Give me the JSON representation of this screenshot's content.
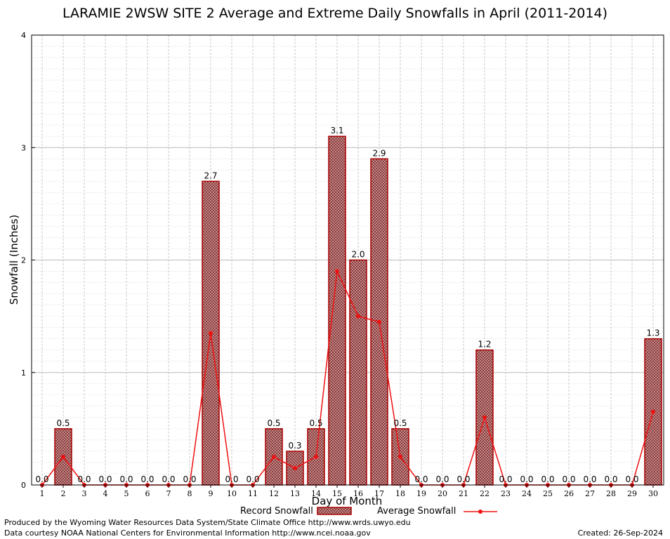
{
  "chart_data": {
    "type": "bar",
    "title": "LARAMIE 2WSW SITE 2 Average and Extreme Daily Snowfalls in April (2011-2014)",
    "xlabel": "Day of Month",
    "ylabel": "Snowfall (Inches)",
    "ylim": [
      0,
      4
    ],
    "yticks": [
      "0",
      "1",
      "2",
      "3",
      "4"
    ],
    "categories": [
      "1",
      "2",
      "3",
      "4",
      "5",
      "6",
      "7",
      "8",
      "9",
      "10",
      "11",
      "12",
      "13",
      "14",
      "15",
      "16",
      "17",
      "18",
      "19",
      "20",
      "21",
      "22",
      "23",
      "24",
      "25",
      "26",
      "27",
      "28",
      "29",
      "30"
    ],
    "series": [
      {
        "name": "Record Snowfall",
        "type": "bar",
        "values": [
          0.0,
          0.5,
          0.0,
          0.0,
          0.0,
          0.0,
          0.0,
          0.0,
          2.7,
          0.0,
          0.0,
          0.5,
          0.3,
          0.5,
          3.1,
          2.0,
          2.9,
          0.5,
          0.0,
          0.0,
          0.0,
          1.2,
          0.0,
          0.0,
          0.0,
          0.0,
          0.0,
          0.0,
          0.0,
          1.3
        ],
        "labels": [
          "0.0",
          "0.5",
          "0.0",
          "0.0",
          "0.0",
          "0.0",
          "0.0",
          "0.0",
          "2.7",
          "0.0",
          "0.0",
          "0.5",
          "0.3",
          "0.5",
          "3.1",
          "2.0",
          "2.9",
          "0.5",
          "0.0",
          "0.0",
          "0.0",
          "1.2",
          "0.0",
          "0.0",
          "0.0",
          "0.0",
          "0.0",
          "0.0",
          "0.0",
          "1.3"
        ]
      },
      {
        "name": "Average Snowfall",
        "type": "line",
        "values": [
          0.0,
          0.25,
          0.0,
          0.0,
          0.0,
          0.0,
          0.0,
          0.0,
          1.35,
          0.0,
          0.0,
          0.25,
          0.15,
          0.25,
          1.9,
          1.5,
          1.45,
          0.25,
          0.0,
          0.0,
          0.0,
          0.6,
          0.0,
          0.0,
          0.0,
          0.0,
          0.0,
          0.0,
          0.0,
          0.65
        ]
      }
    ],
    "grid": true,
    "legend": "bottom"
  },
  "footer": {
    "line1": "Produced by the Wyoming Water Resources Data System/State Climate Office http://www.wrds.uwyo.edu",
    "line2": "Data courtesy NOAA National Centers for Environmental Information http://www.ncei.noaa.gov",
    "created": "Created:  26-Sep-2024"
  },
  "colors": {
    "bar_stroke": "#aa0000",
    "bar_fill": "#b07070",
    "line": "#ee1111",
    "grid": "#bbbbbb"
  }
}
